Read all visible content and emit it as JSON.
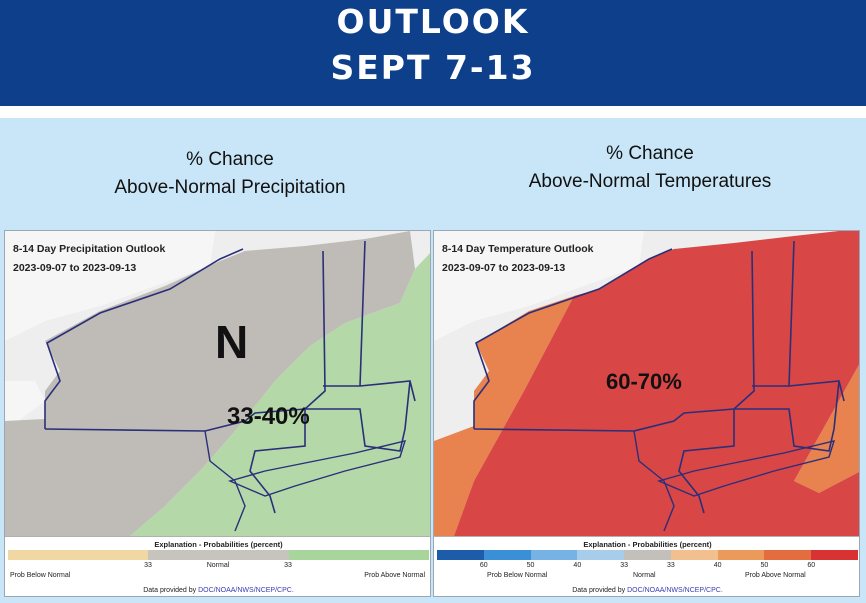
{
  "header": {
    "title_line1": "OUTLOOK",
    "title_line2": "SEPT 7-13"
  },
  "precip": {
    "subtitle_line1": "% Chance",
    "subtitle_line2": "Above-Normal Precipitation",
    "map_title": "8-14 Day Precipitation Outlook",
    "map_dates": "2023-09-07 to 2023-09-13",
    "label_n": "N",
    "label_pct": "33-40%",
    "legend": {
      "title": "Explanation - Probabilities (percent)",
      "colors": [
        "#f1d7a3",
        "#c7c3bd",
        "#a8d59c"
      ],
      "num_left": "33",
      "num_normal": "Normal",
      "num_right": "33",
      "below": "Prob Below Normal",
      "above": "Prob Above Normal",
      "credit_prefix": "Data provided by",
      "credit_link": "DOC/NOAA/NWS/NCEP/CPC."
    }
  },
  "temp": {
    "subtitle_line1": "% Chance",
    "subtitle_line2": "Above-Normal Temperatures",
    "map_title": "8-14 Day Temperature Outlook",
    "map_dates": "2023-09-07 to 2023-09-13",
    "label_pct": "60-70%",
    "legend": {
      "title": "Explanation - Probabilities (percent)",
      "colors": [
        "#1c5ca8",
        "#3a8fd6",
        "#76b2e3",
        "#a8cdeb",
        "#c3c0bb",
        "#f2c08e",
        "#ec9a5b",
        "#e36d3f",
        "#d93232"
      ],
      "nums": [
        "60",
        "50",
        "40",
        "33",
        "33",
        "40",
        "50",
        "60"
      ],
      "below": "Prob Below Normal",
      "normal": "Normal",
      "above": "Prob Above Normal",
      "credit_prefix": "Data provided by",
      "credit_link": "DOC/NOAA/NWS/NCEP/CPC."
    }
  }
}
